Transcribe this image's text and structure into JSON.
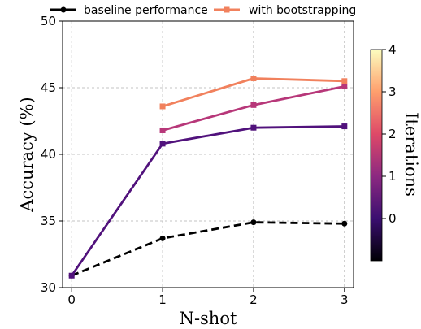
{
  "chart_data": {
    "type": "line",
    "title": "",
    "xlabel": "N-shot",
    "ylabel": "Accuracy (%)",
    "xlim": [
      -0.1,
      3.1
    ],
    "ylim": [
      30,
      50
    ],
    "x_ticks": [
      0,
      1,
      2,
      3
    ],
    "y_ticks": [
      30,
      35,
      40,
      45,
      50
    ],
    "grid": true,
    "legend_position": "top, above plot",
    "series": [
      {
        "name": "baseline performance",
        "x": [
          0,
          1,
          2,
          3
        ],
        "values": [
          30.9,
          33.7,
          34.9,
          34.8
        ],
        "color": "#000000",
        "style": "dashed",
        "marker": "circle"
      },
      {
        "name": "",
        "iteration": 0,
        "x": [
          0,
          1,
          2,
          3
        ],
        "values": [
          30.9,
          40.8,
          42.0,
          42.1
        ],
        "color": "#51127c",
        "style": "solid",
        "marker": "square"
      },
      {
        "name": "",
        "iteration": 1,
        "x": [
          1,
          2,
          3
        ],
        "values": [
          41.8,
          43.7,
          45.1
        ],
        "color": "#b73779",
        "style": "solid",
        "marker": "square"
      },
      {
        "name": "with bootstrapping",
        "iteration": 2,
        "x": [
          1,
          2,
          3
        ],
        "values": [
          43.6,
          45.7,
          45.5
        ],
        "color": "#f1815d",
        "style": "solid",
        "marker": "square"
      }
    ],
    "colorbar": {
      "label": "Iterations",
      "ticks": [
        0,
        1,
        2,
        3,
        4
      ],
      "range": [
        -1,
        4
      ],
      "colormap": [
        "#000004",
        "#3b0f70",
        "#8c2981",
        "#de4968",
        "#fe9f6d",
        "#fcfdbf"
      ]
    }
  }
}
